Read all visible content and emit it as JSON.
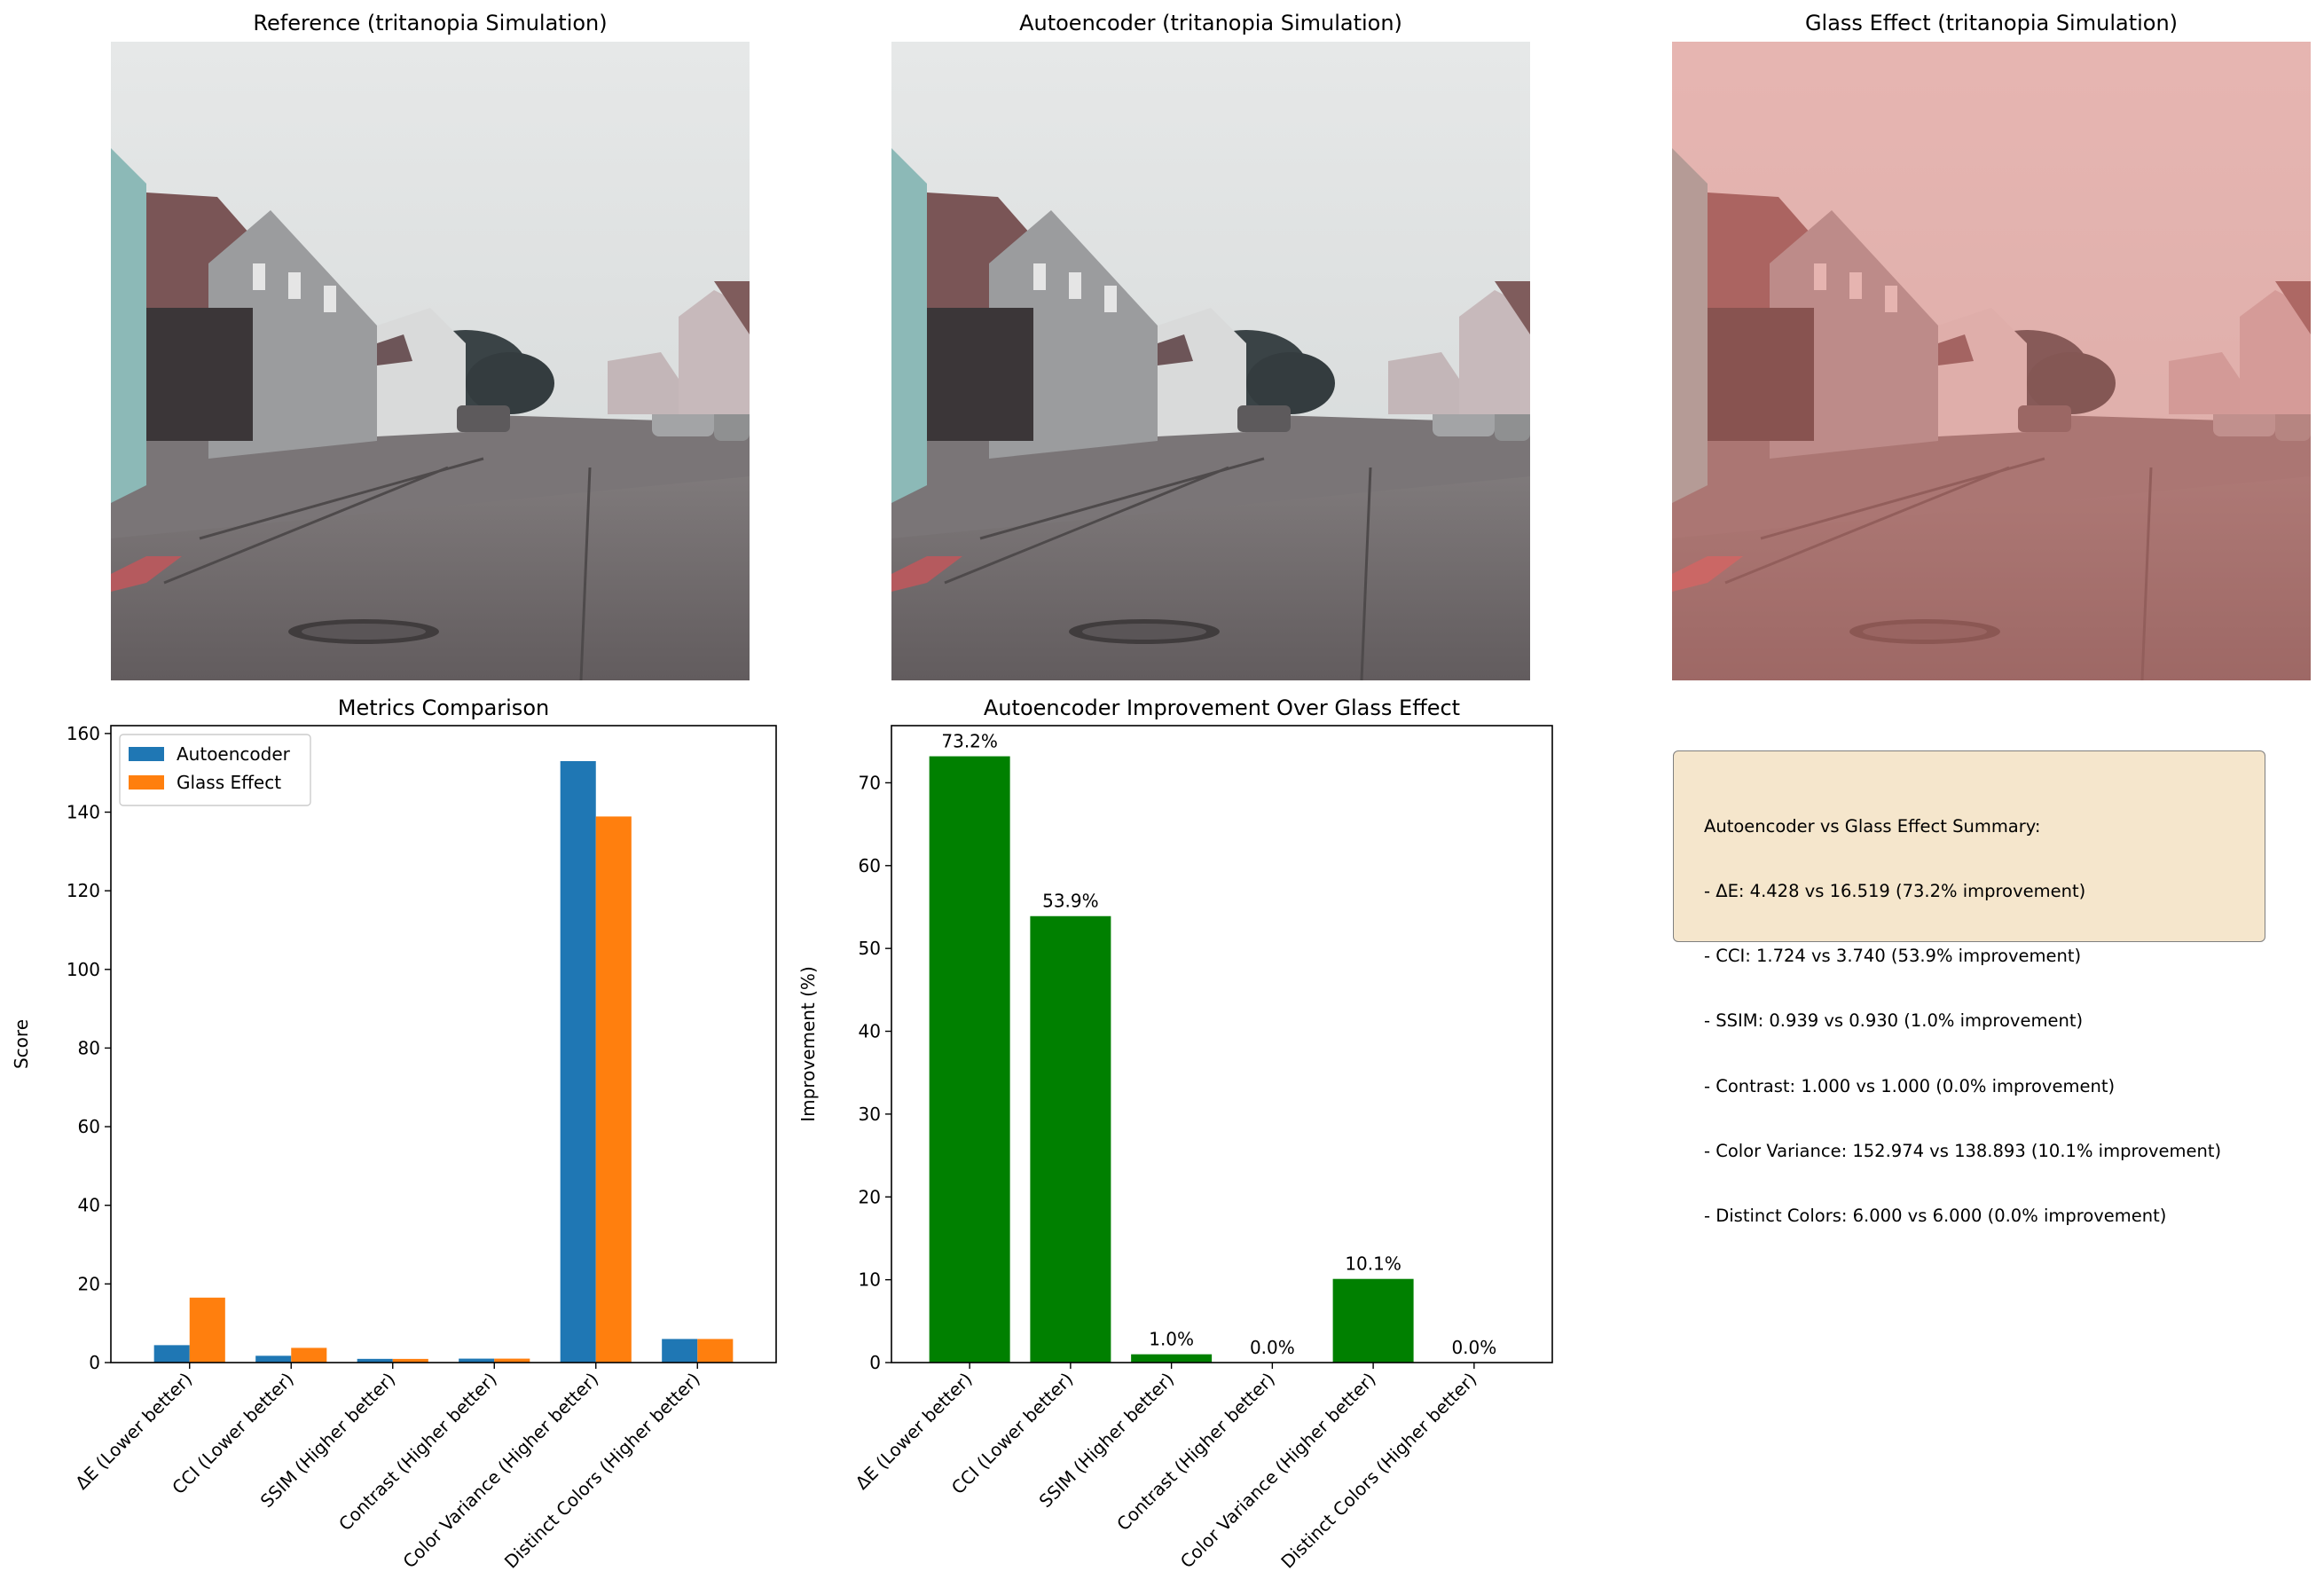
{
  "panels": {
    "reference_title": "Reference (tritanopia Simulation)",
    "autoencoder_title": "Autoencoder (tritanopia Simulation)",
    "glass_title": "Glass Effect (tritanopia Simulation)"
  },
  "colors": {
    "autoencoder": "#1f77b4",
    "glass": "#ff7f0e",
    "improvement": "#008000",
    "summary_bg": "#f5e6cc"
  },
  "summary": {
    "heading": "Autoencoder vs Glass Effect Summary:",
    "lines": [
      "- ΔE: 4.428 vs 16.519 (73.2% improvement)",
      "- CCI: 1.724 vs 3.740 (53.9% improvement)",
      "- SSIM: 0.939 vs 0.930 (1.0% improvement)",
      "- Contrast: 1.000 vs 1.000 (0.0% improvement)",
      "- Color Variance: 152.974 vs 138.893 (10.1% improvement)",
      "- Distinct Colors: 6.000 vs 6.000 (0.0% improvement)"
    ]
  },
  "chart_data": [
    {
      "type": "bar",
      "title": "Metrics Comparison",
      "xlabel": "",
      "ylabel": "Score",
      "ylim": [
        0,
        162
      ],
      "yticks": [
        0,
        20,
        40,
        60,
        80,
        100,
        120,
        140,
        160
      ],
      "categories": [
        "ΔE (Lower better)",
        "CCI (Lower better)",
        "SSIM (Higher better)",
        "Contrast (Higher better)",
        "Color Variance (Higher better)",
        "Distinct Colors (Higher better)"
      ],
      "series": [
        {
          "name": "Autoencoder",
          "values": [
            4.428,
            1.724,
            0.939,
            1.0,
            152.974,
            6.0
          ]
        },
        {
          "name": "Glass Effect",
          "values": [
            16.519,
            3.74,
            0.93,
            1.0,
            138.893,
            6.0
          ]
        }
      ],
      "legend": "top-left",
      "grid": false
    },
    {
      "type": "bar",
      "title": "Autoencoder Improvement Over Glass Effect",
      "xlabel": "",
      "ylabel": "Improvement (%)",
      "ylim": [
        0,
        76.9
      ],
      "yticks": [
        0,
        10,
        20,
        30,
        40,
        50,
        60,
        70
      ],
      "categories": [
        "ΔE (Lower better)",
        "CCI (Lower better)",
        "SSIM (Higher better)",
        "Contrast (Higher better)",
        "Color Variance (Higher better)",
        "Distinct Colors (Higher better)"
      ],
      "values": [
        73.2,
        53.9,
        1.0,
        0.0,
        10.1,
        0.0
      ],
      "data_labels": [
        "73.2%",
        "53.9%",
        "1.0%",
        "0.0%",
        "10.1%",
        "0.0%"
      ],
      "grid": false
    }
  ]
}
